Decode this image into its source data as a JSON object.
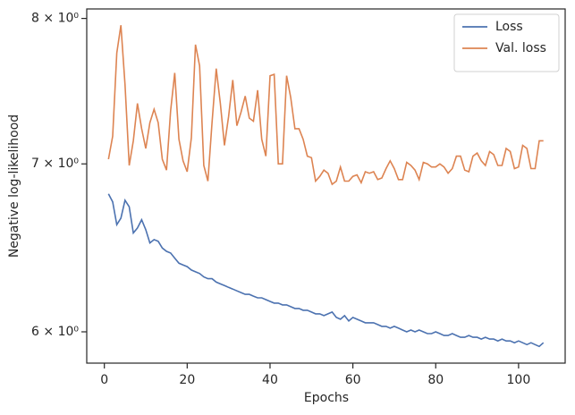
{
  "chart_data": {
    "type": "line",
    "xlabel": "Epochs",
    "ylabel": "Negative log-likelihood",
    "x": [
      1,
      2,
      3,
      4,
      5,
      6,
      7,
      8,
      9,
      10,
      11,
      12,
      13,
      14,
      15,
      16,
      17,
      18,
      19,
      20,
      21,
      22,
      23,
      24,
      25,
      26,
      27,
      28,
      29,
      30,
      31,
      32,
      33,
      34,
      35,
      36,
      37,
      38,
      39,
      40,
      41,
      42,
      43,
      44,
      45,
      46,
      47,
      48,
      49,
      50,
      51,
      52,
      53,
      54,
      55,
      56,
      57,
      58,
      59,
      60,
      61,
      62,
      63,
      64,
      65,
      66,
      67,
      68,
      69,
      70,
      71,
      72,
      73,
      74,
      75,
      76,
      77,
      78,
      79,
      80,
      81,
      82,
      83,
      84,
      85,
      86,
      87,
      88,
      89,
      90,
      91,
      92,
      93,
      94,
      95,
      96,
      97,
      98,
      99,
      100,
      101,
      102,
      103,
      104,
      105,
      106
    ],
    "series": [
      {
        "name": "Loss",
        "color": "#4c72b0",
        "values": [
          6.81,
          6.76,
          6.62,
          6.66,
          6.77,
          6.73,
          6.57,
          6.6,
          6.65,
          6.59,
          6.51,
          6.53,
          6.52,
          6.48,
          6.46,
          6.45,
          6.42,
          6.39,
          6.38,
          6.37,
          6.35,
          6.34,
          6.33,
          6.31,
          6.3,
          6.3,
          6.28,
          6.27,
          6.26,
          6.25,
          6.24,
          6.23,
          6.22,
          6.21,
          6.21,
          6.2,
          6.19,
          6.19,
          6.18,
          6.17,
          6.16,
          6.16,
          6.15,
          6.15,
          6.14,
          6.13,
          6.13,
          6.12,
          6.12,
          6.11,
          6.1,
          6.1,
          6.09,
          6.1,
          6.11,
          6.08,
          6.07,
          6.09,
          6.06,
          6.08,
          6.07,
          6.06,
          6.05,
          6.05,
          6.05,
          6.04,
          6.03,
          6.03,
          6.02,
          6.03,
          6.02,
          6.01,
          6.0,
          6.01,
          6.0,
          6.01,
          6.0,
          5.99,
          5.99,
          6.0,
          5.99,
          5.98,
          5.98,
          5.99,
          5.98,
          5.97,
          5.97,
          5.98,
          5.97,
          5.97,
          5.96,
          5.97,
          5.96,
          5.96,
          5.95,
          5.96,
          5.95,
          5.95,
          5.94,
          5.95,
          5.94,
          5.93,
          5.94,
          5.93,
          5.92,
          5.94
        ]
      },
      {
        "name": "Val. loss",
        "color": "#dd8452",
        "values": [
          7.03,
          7.18,
          7.75,
          7.95,
          7.53,
          6.99,
          7.15,
          7.4,
          7.23,
          7.1,
          7.27,
          7.36,
          7.27,
          7.03,
          6.96,
          7.35,
          7.61,
          7.16,
          7.02,
          6.95,
          7.17,
          7.81,
          7.66,
          6.99,
          6.89,
          7.27,
          7.64,
          7.4,
          7.12,
          7.31,
          7.56,
          7.25,
          7.34,
          7.45,
          7.3,
          7.28,
          7.49,
          7.16,
          7.05,
          7.59,
          7.6,
          7.0,
          7.0,
          7.59,
          7.44,
          7.23,
          7.23,
          7.16,
          7.05,
          7.04,
          6.89,
          6.92,
          6.96,
          6.94,
          6.87,
          6.89,
          6.98,
          6.89,
          6.89,
          6.92,
          6.93,
          6.88,
          6.95,
          6.94,
          6.95,
          6.9,
          6.91,
          6.97,
          7.02,
          6.97,
          6.9,
          6.9,
          7.01,
          6.99,
          6.96,
          6.9,
          7.01,
          7.0,
          6.98,
          6.98,
          7.0,
          6.98,
          6.94,
          6.97,
          7.05,
          7.05,
          6.96,
          6.95,
          7.05,
          7.07,
          7.02,
          6.99,
          7.08,
          7.06,
          6.99,
          6.99,
          7.1,
          7.08,
          6.97,
          6.98,
          7.12,
          7.1,
          6.97,
          6.97,
          7.15,
          7.15
        ]
      }
    ],
    "xlim": [
      -4.25,
      111.25
    ],
    "xticks": [
      0,
      20,
      40,
      60,
      80,
      100
    ],
    "ylim": [
      5.83,
      8.07
    ],
    "ylog": true,
    "yticks": [
      {
        "value": 6,
        "label": "6 × 10⁰"
      },
      {
        "value": 7,
        "label": "7 × 10⁰"
      },
      {
        "value": 8,
        "label": "8 × 10⁰"
      }
    ],
    "grid": false,
    "legend": "upper right"
  }
}
